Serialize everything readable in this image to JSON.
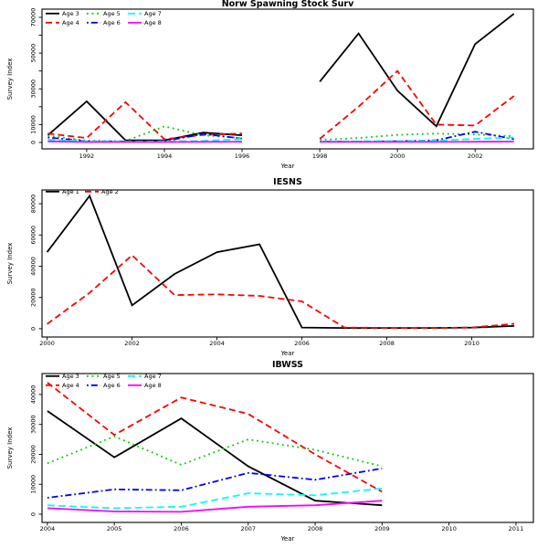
{
  "page": {
    "background": "#FFFFFF"
  },
  "colors": {
    "black": "#000000",
    "red": "#FF0000",
    "green": "#00CD00",
    "blue": "#0000FF",
    "cyan": "#00FFFF",
    "magenta": "#FF00FF"
  },
  "chart_data": [
    {
      "type": "line",
      "title": "Norw Spawning Stock Surv",
      "xlabel": "Year",
      "ylabel": "Survey Index",
      "grid": false,
      "legend_position": "top-left",
      "xlim": [
        1990.85,
        2003.5
      ],
      "ylim": [
        -3600,
        74600
      ],
      "xticks": [
        1992,
        1994,
        1996,
        1998,
        2000,
        2002
      ],
      "yticks": [
        {
          "v": 0,
          "label": "0"
        },
        {
          "v": 10000,
          "label": "10000"
        },
        {
          "v": 20000,
          "label": ""
        },
        {
          "v": 30000,
          "label": "30000"
        },
        {
          "v": 40000,
          "label": ""
        },
        {
          "v": 50000,
          "label": "50000"
        },
        {
          "v": 60000,
          "label": ""
        },
        {
          "v": 70000,
          "label": "70000"
        }
      ],
      "x": [
        1991,
        1992,
        1993,
        1994,
        1995,
        1996,
        1997,
        1998,
        1999,
        2000,
        2001,
        2002,
        2003
      ],
      "series": [
        {
          "name": "Age 3",
          "color": "#000000",
          "lty": "solid",
          "values": [
            4000,
            23000,
            1200,
            1200,
            5500,
            4000,
            null,
            34000,
            61000,
            29000,
            9000,
            55000,
            72000
          ]
        },
        {
          "name": "Age 4",
          "color": "#FF0000",
          "lty": "dashed",
          "values": [
            5000,
            2500,
            22500,
            1800,
            4200,
            5000,
            null,
            2000,
            20000,
            40000,
            10000,
            9500,
            26000
          ]
        },
        {
          "name": "Age 5",
          "color": "#00CD00",
          "lty": "dotted",
          "values": [
            3800,
            1000,
            800,
            9000,
            4000,
            2500,
            null,
            1500,
            2500,
            4200,
            5000,
            4400,
            3500
          ]
        },
        {
          "name": "Age 6",
          "color": "#0000FF",
          "lty": "dashdot",
          "values": [
            2800,
            700,
            500,
            700,
            4800,
            2200,
            null,
            500,
            500,
            700,
            1200,
            6000,
            1800
          ]
        },
        {
          "name": "Age 7",
          "color": "#00FFFF",
          "lty": "longdash",
          "values": [
            1500,
            700,
            500,
            600,
            900,
            1800,
            null,
            700,
            700,
            800,
            1000,
            2000,
            2800
          ]
        },
        {
          "name": "Age 8",
          "color": "#FF00FF",
          "lty": "solid",
          "values": [
            600,
            250,
            250,
            250,
            350,
            400,
            null,
            300,
            300,
            300,
            300,
            400,
            500
          ]
        }
      ],
      "legend_items": [
        "Age 3",
        "Age 4",
        "Age 5",
        "Age 6",
        "Age 7",
        "Age 8"
      ]
    },
    {
      "type": "line",
      "title": "IESNS",
      "xlabel": "Year",
      "ylabel": "Survey Index",
      "grid": false,
      "legend_position": "top-left",
      "xlim": [
        1999.88,
        2011.45
      ],
      "ylim": [
        -5300,
        88800
      ],
      "xticks": [
        2000,
        2002,
        2004,
        2006,
        2008,
        2010
      ],
      "yticks": [
        {
          "v": 0,
          "label": "0"
        },
        {
          "v": 20000,
          "label": "20000"
        },
        {
          "v": 40000,
          "label": "40000"
        },
        {
          "v": 60000,
          "label": "60000"
        },
        {
          "v": 80000,
          "label": "80000"
        }
      ],
      "x": [
        2000,
        2001,
        2002,
        2003,
        2004,
        2005,
        2006,
        2007,
        2008,
        2009,
        2010,
        2011
      ],
      "series": [
        {
          "name": "Age 1",
          "color": "#000000",
          "lty": "solid",
          "values": [
            49000,
            85000,
            15000,
            35000,
            49000,
            54000,
            800,
            500,
            500,
            500,
            700,
            1800
          ]
        },
        {
          "name": "Age 2",
          "color": "#FF0000",
          "lty": "dashed",
          "values": [
            3000,
            23000,
            47000,
            21500,
            22000,
            21000,
            17500,
            800,
            500,
            500,
            800,
            3200
          ]
        }
      ],
      "legend_items": [
        "Age 1",
        "Age 2"
      ]
    },
    {
      "type": "line",
      "title": "IBWSS",
      "xlabel": "Year",
      "ylabel": "Survey Index",
      "grid": false,
      "legend_position": "top-left",
      "xlim": [
        2003.92,
        2011.26
      ],
      "ylim": [
        -2750,
        47000
      ],
      "xticks": [
        2004,
        2005,
        2006,
        2007,
        2008,
        2009,
        2010,
        2011
      ],
      "yticks": [
        {
          "v": 0,
          "label": "0"
        },
        {
          "v": 10000,
          "label": "10000"
        },
        {
          "v": 20000,
          "label": "20000"
        },
        {
          "v": 30000,
          "label": "30000"
        },
        {
          "v": 40000,
          "label": "40000"
        }
      ],
      "x": [
        2004,
        2005,
        2006,
        2007,
        2008,
        2009
      ],
      "series": [
        {
          "name": "Age 3",
          "color": "#000000",
          "lty": "solid",
          "values": [
            34500,
            19000,
            32000,
            16000,
            4500,
            3000
          ]
        },
        {
          "name": "Age 4",
          "color": "#FF0000",
          "lty": "dashed",
          "values": [
            44000,
            26500,
            39000,
            33500,
            20000,
            7500
          ]
        },
        {
          "name": "Age 5",
          "color": "#00CD00",
          "lty": "dotted",
          "values": [
            17000,
            26000,
            16500,
            25000,
            21500,
            16000
          ]
        },
        {
          "name": "Age 6",
          "color": "#0000FF",
          "lty": "dashdot",
          "values": [
            5500,
            8300,
            8000,
            13800,
            11500,
            15300
          ]
        },
        {
          "name": "Age 7",
          "color": "#00FFFF",
          "lty": "longdash",
          "values": [
            3000,
            2000,
            2500,
            7000,
            6300,
            8600
          ]
        },
        {
          "name": "Age 8",
          "color": "#FF00FF",
          "lty": "solid",
          "values": [
            2000,
            900,
            800,
            2500,
            3000,
            4500
          ]
        }
      ],
      "legend_items": [
        "Age 3",
        "Age 4",
        "Age 5",
        "Age 6",
        "Age 7",
        "Age 8"
      ]
    }
  ]
}
